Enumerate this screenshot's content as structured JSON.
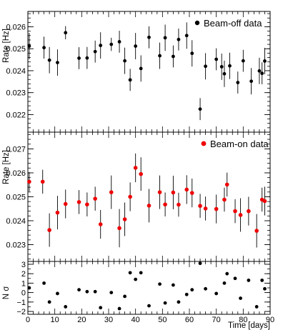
{
  "chart_data": [
    {
      "type": "scatter",
      "ylabel": "Rate [Hz]",
      "ylim": [
        0.0212,
        0.0267
      ],
      "xlim": [
        0,
        90
      ],
      "yticks": [
        "0.022",
        "0.023",
        "0.024",
        "0.025",
        "0.026"
      ],
      "legend": {
        "label": "Beam-off data",
        "position": "top-right"
      },
      "series": [
        {
          "name": "Beam-off data",
          "color": "#000000",
          "x": [
            0.5,
            6,
            8,
            11,
            14,
            19,
            22,
            25,
            27,
            31,
            34,
            36,
            38,
            40,
            42,
            45,
            49,
            51,
            54,
            56,
            59,
            61,
            64,
            66,
            70,
            72,
            73,
            75,
            78,
            80,
            83,
            86,
            87,
            88
          ],
          "y": [
            0.02512,
            0.02505,
            0.02448,
            0.02437,
            0.02573,
            0.02457,
            0.02458,
            0.02487,
            0.02515,
            0.0252,
            0.02532,
            0.02445,
            0.02358,
            0.02512,
            0.0241,
            0.02552,
            0.02468,
            0.0255,
            0.02465,
            0.02542,
            0.0256,
            0.02479,
            0.02225,
            0.0242,
            0.02452,
            0.02418,
            0.02386,
            0.02422,
            0.02346,
            0.02445,
            0.02352,
            0.02399,
            0.02388,
            0.02444
          ],
          "err": [
            0.0006,
            0.0005,
            0.0006,
            0.0006,
            0.0003,
            0.0005,
            0.0005,
            0.0005,
            0.0006,
            0.0003,
            0.0005,
            0.0006,
            0.0005,
            0.0006,
            0.0006,
            0.0005,
            0.0006,
            0.0006,
            0.0005,
            0.0005,
            0.0006,
            0.0006,
            0.0005,
            0.0006,
            0.0005,
            0.0006,
            0.0006,
            0.0006,
            0.0005,
            0.0005,
            0.0006,
            0.0006,
            0.0005,
            0.0006
          ]
        }
      ]
    },
    {
      "type": "scatter",
      "ylabel": "Rate [Hz]",
      "ylim": [
        0.0223,
        0.0277
      ],
      "xlim": [
        0,
        90
      ],
      "yticks": [
        "0.023",
        "0.024",
        "0.025",
        "0.026",
        "0.027"
      ],
      "legend": {
        "label": "Beam-on data",
        "position": "top-right"
      },
      "series": [
        {
          "name": "Beam-on data",
          "color": "#ee0000",
          "x": [
            0.5,
            5.5,
            8,
            11,
            14,
            19,
            22,
            25,
            27,
            31,
            34,
            36,
            38,
            40,
            42,
            45,
            49,
            51,
            54,
            56,
            59,
            61,
            64,
            66,
            70,
            73,
            74,
            77,
            79,
            82,
            85,
            87,
            88
          ],
          "y": [
            0.02563,
            0.02563,
            0.02361,
            0.02434,
            0.0247,
            0.02478,
            0.02468,
            0.02492,
            0.02385,
            0.02519,
            0.02369,
            0.02406,
            0.025,
            0.02621,
            0.02595,
            0.02463,
            0.02519,
            0.02468,
            0.02518,
            0.02467,
            0.0253,
            0.02516,
            0.02462,
            0.02451,
            0.02449,
            0.02488,
            0.02551,
            0.0244,
            0.02424,
            0.0244,
            0.02358,
            0.02488,
            0.02482
          ],
          "err": [
            0.0004,
            0.0005,
            0.0007,
            0.0007,
            0.0006,
            0.0005,
            0.0005,
            0.0005,
            0.0006,
            0.0007,
            0.0008,
            0.0007,
            0.0006,
            0.0006,
            0.0007,
            0.0007,
            0.0007,
            0.0005,
            0.0007,
            0.0005,
            0.0006,
            0.0006,
            0.0005,
            0.0005,
            0.0006,
            0.0005,
            0.0005,
            0.0005,
            0.0007,
            0.0006,
            0.0007,
            0.0005,
            0.0006
          ]
        }
      ]
    },
    {
      "type": "scatter",
      "ylabel": "N σ",
      "xlabel": "Time [days]",
      "ylim": [
        -2.3,
        3.3
      ],
      "xlim": [
        0,
        90
      ],
      "yticks": [
        "3",
        "2",
        "1",
        "0",
        "−1",
        "−2"
      ],
      "xticks": [
        "0",
        "10",
        "20",
        "30",
        "40",
        "50",
        "60",
        "70",
        "80",
        "90"
      ],
      "series": [
        {
          "name": "",
          "color": "#000000",
          "x": [
            0.5,
            6,
            8,
            11,
            14,
            19,
            22,
            25,
            27,
            31,
            34,
            36,
            38,
            40,
            42,
            45,
            49,
            51,
            54,
            56,
            59,
            61,
            64,
            66,
            70,
            73,
            74,
            77,
            79,
            82,
            85,
            87,
            88
          ],
          "y": [
            0.5,
            1.0,
            -1.0,
            -0.1,
            -1.5,
            0.3,
            0.1,
            0.1,
            -1.6,
            0.0,
            -1.7,
            -0.4,
            2.1,
            1.4,
            2.1,
            -1.4,
            0.9,
            -1.1,
            0.8,
            -1.0,
            -0.2,
            0.3,
            3.1,
            0.4,
            -0.1,
            1.0,
            2.0,
            1.5,
            -0.6,
            1.3,
            -1.5,
            1.3,
            0.4
          ]
        }
      ]
    }
  ]
}
